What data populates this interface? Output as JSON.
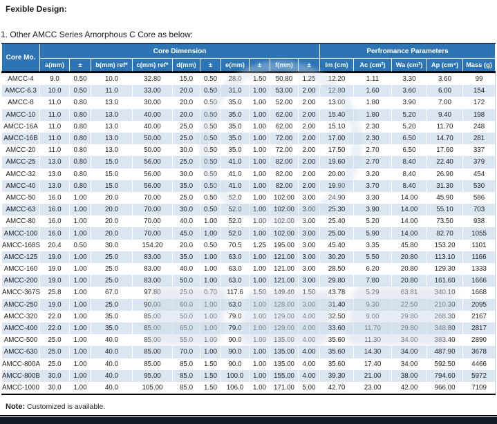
{
  "page": {
    "title": "Fexible Design:",
    "subtitle": "1. Other AMCC Series Amorphous C Core as below:",
    "note_label": "Note:",
    "note_text": "Customized is available."
  },
  "colors": {
    "header_blue": "#2d74b5",
    "stripe_blue": "#dbe6f2",
    "header_divider": "#0a0a0a",
    "bottom_bar": "#121926"
  },
  "table": {
    "corner_header": "Core Mo.",
    "groups": [
      {
        "label": "Core Dimension",
        "span": 10
      },
      {
        "label": "Perfromance Parameters",
        "span": 5
      }
    ],
    "columns": [
      "a(mm)",
      "±",
      "b(mm) ref*",
      "c(mm) ref*",
      "d(mm)",
      "±",
      "e(mm)",
      "±",
      "f(mm)",
      "±",
      "Im (cm)",
      "Ac (cm²)",
      "Wa (cm²)",
      "Ap (cm⁴)",
      "Mass (g)"
    ],
    "rows": [
      {
        "model": "AMCC-4",
        "values": [
          "9.0",
          "0.50",
          "10.0",
          "32.80",
          "15.0",
          "0.50",
          "28.0",
          "1.50",
          "50.80",
          "1.25",
          "12.20",
          "1.11",
          "3.30",
          "3.60",
          "99"
        ]
      },
      {
        "model": "AMCC-6.3",
        "values": [
          "10.0",
          "0.50",
          "11.0",
          "33.00",
          "20.0",
          "0.50",
          "31.0",
          "1.00",
          "53.00",
          "2.00",
          "12.80",
          "1.60",
          "3.60",
          "6.00",
          "154"
        ]
      },
      {
        "model": "AMCC-8",
        "values": [
          "11.0",
          "0.80",
          "13.0",
          "30.00",
          "20.0",
          "0.50",
          "35.0",
          "1.00",
          "52.00",
          "2.00",
          "13.00",
          "1.80",
          "3.90",
          "7.00",
          "172"
        ]
      },
      {
        "model": "AMCC-10",
        "values": [
          "11.0",
          "0.80",
          "13.0",
          "40.00",
          "20.0",
          "0.50",
          "35.0",
          "1.00",
          "62.00",
          "2.00",
          "15.40",
          "1.80",
          "5.20",
          "9.40",
          "198"
        ]
      },
      {
        "model": "AMCC-16A",
        "values": [
          "11.0",
          "0.80",
          "13.0",
          "40.00",
          "25.0",
          "0.50",
          "35.0",
          "1.00",
          "62.00",
          "2.00",
          "15.10",
          "2.30",
          "5.20",
          "11.70",
          "248"
        ]
      },
      {
        "model": "AMCC-16B",
        "values": [
          "11.0",
          "0.80",
          "13.0",
          "50.00",
          "25.0",
          "0.50",
          "35.0",
          "1.00",
          "72.00",
          "2.00",
          "17.00",
          "2.30",
          "6.50",
          "14.70",
          "281"
        ]
      },
      {
        "model": "AMCC-20",
        "values": [
          "11.0",
          "0.80",
          "13.0",
          "50.00",
          "30.0",
          "0.50",
          "35.0",
          "1.00",
          "72.00",
          "2.00",
          "17.50",
          "2.70",
          "6.50",
          "17.60",
          "337"
        ]
      },
      {
        "model": "AMCC-25",
        "values": [
          "13.0",
          "0.80",
          "15.0",
          "56.00",
          "25.0",
          "0.50",
          "41.0",
          "1.00",
          "82.00",
          "2.00",
          "19.60",
          "2.70",
          "8.40",
          "22.40",
          "379"
        ]
      },
      {
        "model": "AMCC-32",
        "values": [
          "13.0",
          "0.80",
          "15.0",
          "56.00",
          "30.0",
          "0.50",
          "41.0",
          "1.00",
          "82.00",
          "2.00",
          "20.00",
          "3.20",
          "8.40",
          "26.90",
          "454"
        ]
      },
      {
        "model": "AMCC-40",
        "values": [
          "13.0",
          "0.80",
          "15.0",
          "56.00",
          "35.0",
          "0.50",
          "41.0",
          "1.00",
          "82.00",
          "2.00",
          "19.90",
          "3.70",
          "8.40",
          "31.30",
          "530"
        ]
      },
      {
        "model": "AMCC-50",
        "values": [
          "16.0",
          "1.00",
          "20.0",
          "70.00",
          "25.0",
          "0.50",
          "52.0",
          "1.00",
          "102.00",
          "3.00",
          "24.90",
          "3.30",
          "14.00",
          "45.90",
          "586"
        ]
      },
      {
        "model": "AMCC-63",
        "values": [
          "16.0",
          "1.00",
          "20.0",
          "70.00",
          "30.0",
          "0.50",
          "52.0",
          "1.00",
          "102.00",
          "3.00",
          "25.30",
          "3.90",
          "14.00",
          "55.10",
          "703"
        ]
      },
      {
        "model": "AMCC-80",
        "values": [
          "16.0",
          "1.00",
          "20.0",
          "70.00",
          "40.0",
          "1.00",
          "52.0",
          "1.00",
          "102.00",
          "3.00",
          "25.40",
          "5.20",
          "14.00",
          "73.50",
          "938"
        ]
      },
      {
        "model": "AMCC-100",
        "values": [
          "16.0",
          "1.00",
          "20.0",
          "70.00",
          "45.0",
          "1.00",
          "52.0",
          "1.00",
          "102.00",
          "3.00",
          "25.00",
          "5.90",
          "14.00",
          "82.70",
          "1055"
        ]
      },
      {
        "model": "AMCC-168S",
        "values": [
          "20.4",
          "0.50",
          "30.0",
          "154.20",
          "20.0",
          "0.50",
          "70.5",
          "1.25",
          "195.00",
          "3.00",
          "45.40",
          "3.35",
          "45.80",
          "153.20",
          "1101"
        ]
      },
      {
        "model": "AMCC-125",
        "values": [
          "19.0",
          "1.00",
          "25.0",
          "83.00",
          "35.0",
          "1.00",
          "63.0",
          "1.00",
          "121.00",
          "3.00",
          "30.20",
          "5.50",
          "20.80",
          "113.10",
          "1166"
        ]
      },
      {
        "model": "AMCC-160",
        "values": [
          "19.0",
          "1.00",
          "25.0",
          "83.00",
          "40.0",
          "1.00",
          "63.0",
          "1.00",
          "121.00",
          "3.00",
          "28.50",
          "6.20",
          "20.80",
          "129.30",
          "1333"
        ]
      },
      {
        "model": "AMCC-200",
        "values": [
          "19.0",
          "1.00",
          "25.0",
          "83.00",
          "50.0",
          "1.00",
          "63.0",
          "1.00",
          "121.00",
          "3.00",
          "29.80",
          "7.80",
          "20.80",
          "161.60",
          "1666"
        ]
      },
      {
        "model": "AMCC-367S",
        "values": [
          "25.8",
          "1.00",
          "67.0",
          "97.80",
          "25.0",
          "0.70",
          "117.6",
          "1.50",
          "149.40",
          "1.50",
          "43.78",
          "5.29",
          "63.81",
          "340.10",
          "1668"
        ]
      },
      {
        "model": "AMCC-250",
        "values": [
          "19.0",
          "1.00",
          "25.0",
          "90.00",
          "60.0",
          "1.00",
          "63.0",
          "1.00",
          "128.00",
          "3.00",
          "31.40",
          "9.30",
          "22.50",
          "210.30",
          "2095"
        ]
      },
      {
        "model": "AMCC-320",
        "values": [
          "22.0",
          "1.00",
          "35.0",
          "85.00",
          "50.0",
          "1.00",
          "79.0",
          "1.00",
          "129.00",
          "4.00",
          "32.50",
          "9.00",
          "29.80",
          "268.30",
          "2167"
        ]
      },
      {
        "model": "AMCC-400",
        "values": [
          "22.0",
          "1.00",
          "35.0",
          "85.00",
          "65.0",
          "1.00",
          "79.0",
          "1.00",
          "129.00",
          "4.00",
          "33.60",
          "11.70",
          "29.80",
          "348.80",
          "2817"
        ]
      },
      {
        "model": "AMCC-500",
        "values": [
          "25.0",
          "1.00",
          "40.0",
          "85.00",
          "55.0",
          "1.00",
          "90.0",
          "1.00",
          "135.00",
          "4.00",
          "35.60",
          "11.30",
          "34.00",
          "383.40",
          "2890"
        ]
      },
      {
        "model": "AMCC-630",
        "values": [
          "25.0",
          "1.00",
          "40.0",
          "85.00",
          "70.0",
          "1.00",
          "90.0",
          "1.00",
          "135.00",
          "4.00",
          "35.60",
          "14.30",
          "34.00",
          "487.90",
          "3678"
        ]
      },
      {
        "model": "AMCC-800A",
        "values": [
          "25.0",
          "1.00",
          "40.0",
          "85.00",
          "85.0",
          "1.50",
          "90.0",
          "1.00",
          "135.00",
          "4.00",
          "35.60",
          "17.40",
          "34.00",
          "592.50",
          "4466"
        ]
      },
      {
        "model": "AMCC-800B",
        "values": [
          "30.0",
          "1.00",
          "40.0",
          "95.00",
          "85.0",
          "1.50",
          "100.0",
          "1.00",
          "155.00",
          "4.00",
          "39.30",
          "21.00",
          "38.00",
          "794.60",
          "5972"
        ]
      },
      {
        "model": "AMCC-1000",
        "values": [
          "30.0",
          "1.00",
          "40.0",
          "105.00",
          "85.0",
          "1.50",
          "106.0",
          "1.00",
          "171.00",
          "5.00",
          "42.70",
          "23.00",
          "42.00",
          "966.00",
          "7109"
        ]
      }
    ]
  }
}
